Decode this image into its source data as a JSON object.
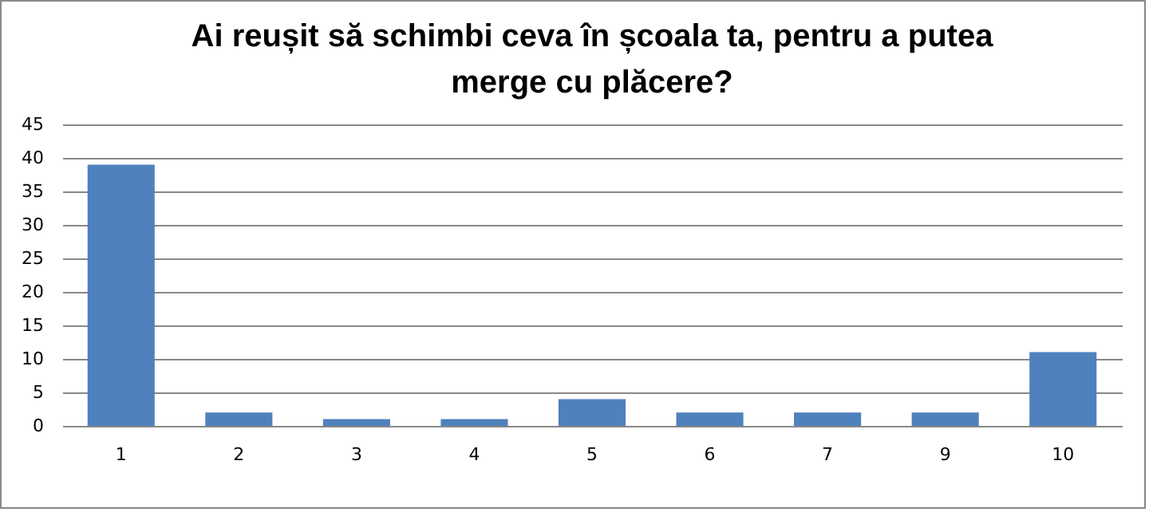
{
  "chart_data": {
    "type": "bar",
    "title": "Ai reușit să schimbi ceva în școala ta, pentru a putea merge cu plăcere?",
    "categories": [
      "1",
      "2",
      "3",
      "4",
      "5",
      "6",
      "7",
      "9",
      "10"
    ],
    "values": [
      39,
      2,
      1,
      1,
      4,
      2,
      2,
      2,
      11
    ],
    "color": "#4f81bd",
    "ylim": [
      0,
      45
    ],
    "yticks": [
      0,
      5,
      10,
      15,
      20,
      25,
      30,
      35,
      40,
      45
    ],
    "grid": "y"
  }
}
